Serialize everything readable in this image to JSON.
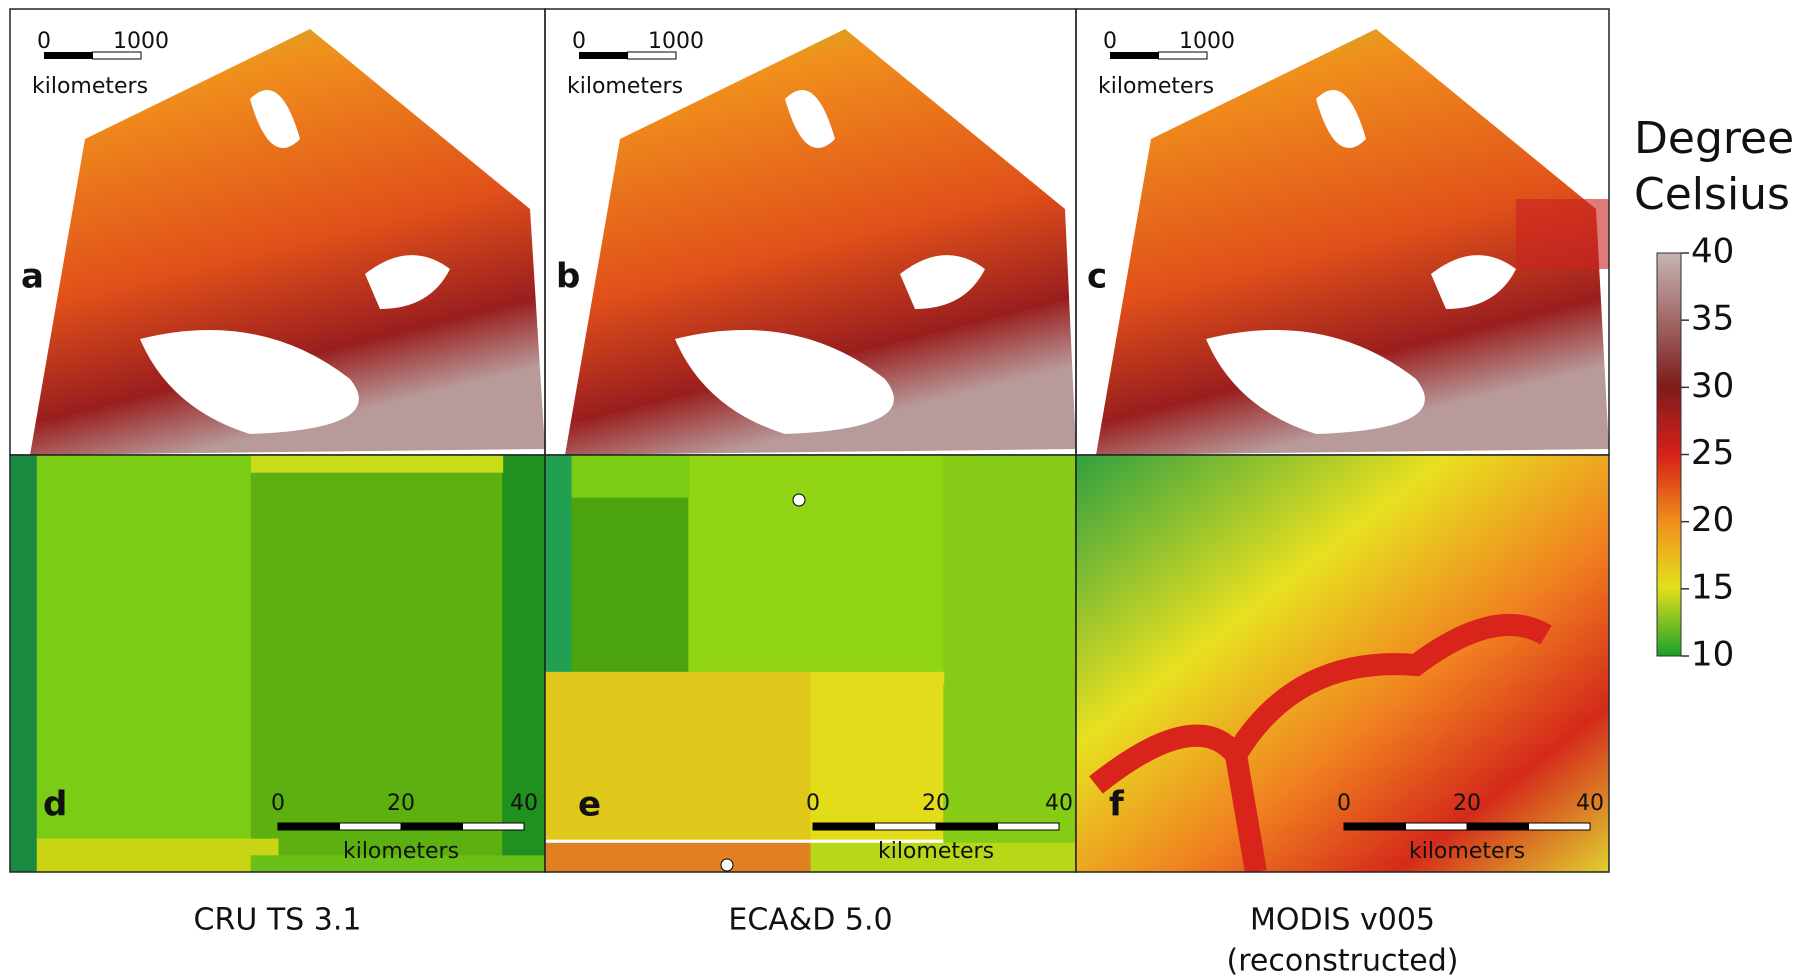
{
  "panels": [
    {
      "letter": "a",
      "scale_labels": [
        "0",
        "1000"
      ],
      "scale_unit": "kilometers"
    },
    {
      "letter": "b",
      "scale_labels": [
        "0",
        "1000"
      ],
      "scale_unit": "kilometers"
    },
    {
      "letter": "c",
      "scale_labels": [
        "0",
        "1000"
      ],
      "scale_unit": "kilometers"
    },
    {
      "letter": "d",
      "scale_labels": [
        "0",
        "20",
        "40"
      ],
      "scale_unit": "kilometers"
    },
    {
      "letter": "e",
      "scale_labels": [
        "0",
        "20",
        "40"
      ],
      "scale_unit": "kilometers"
    },
    {
      "letter": "f",
      "scale_labels": [
        "0",
        "20",
        "40"
      ],
      "scale_unit": "kilometers"
    }
  ],
  "columns": [
    {
      "title": "CRU TS 3.1"
    },
    {
      "title": "ECA&D 5.0"
    },
    {
      "title": "MODIS v005",
      "subtitle": "(reconstructed)"
    }
  ],
  "colorbar": {
    "title": [
      "Degree",
      "Celsius"
    ],
    "range": [
      10,
      40
    ],
    "ticks": [
      10,
      15,
      20,
      25,
      30,
      35,
      40
    ]
  }
}
